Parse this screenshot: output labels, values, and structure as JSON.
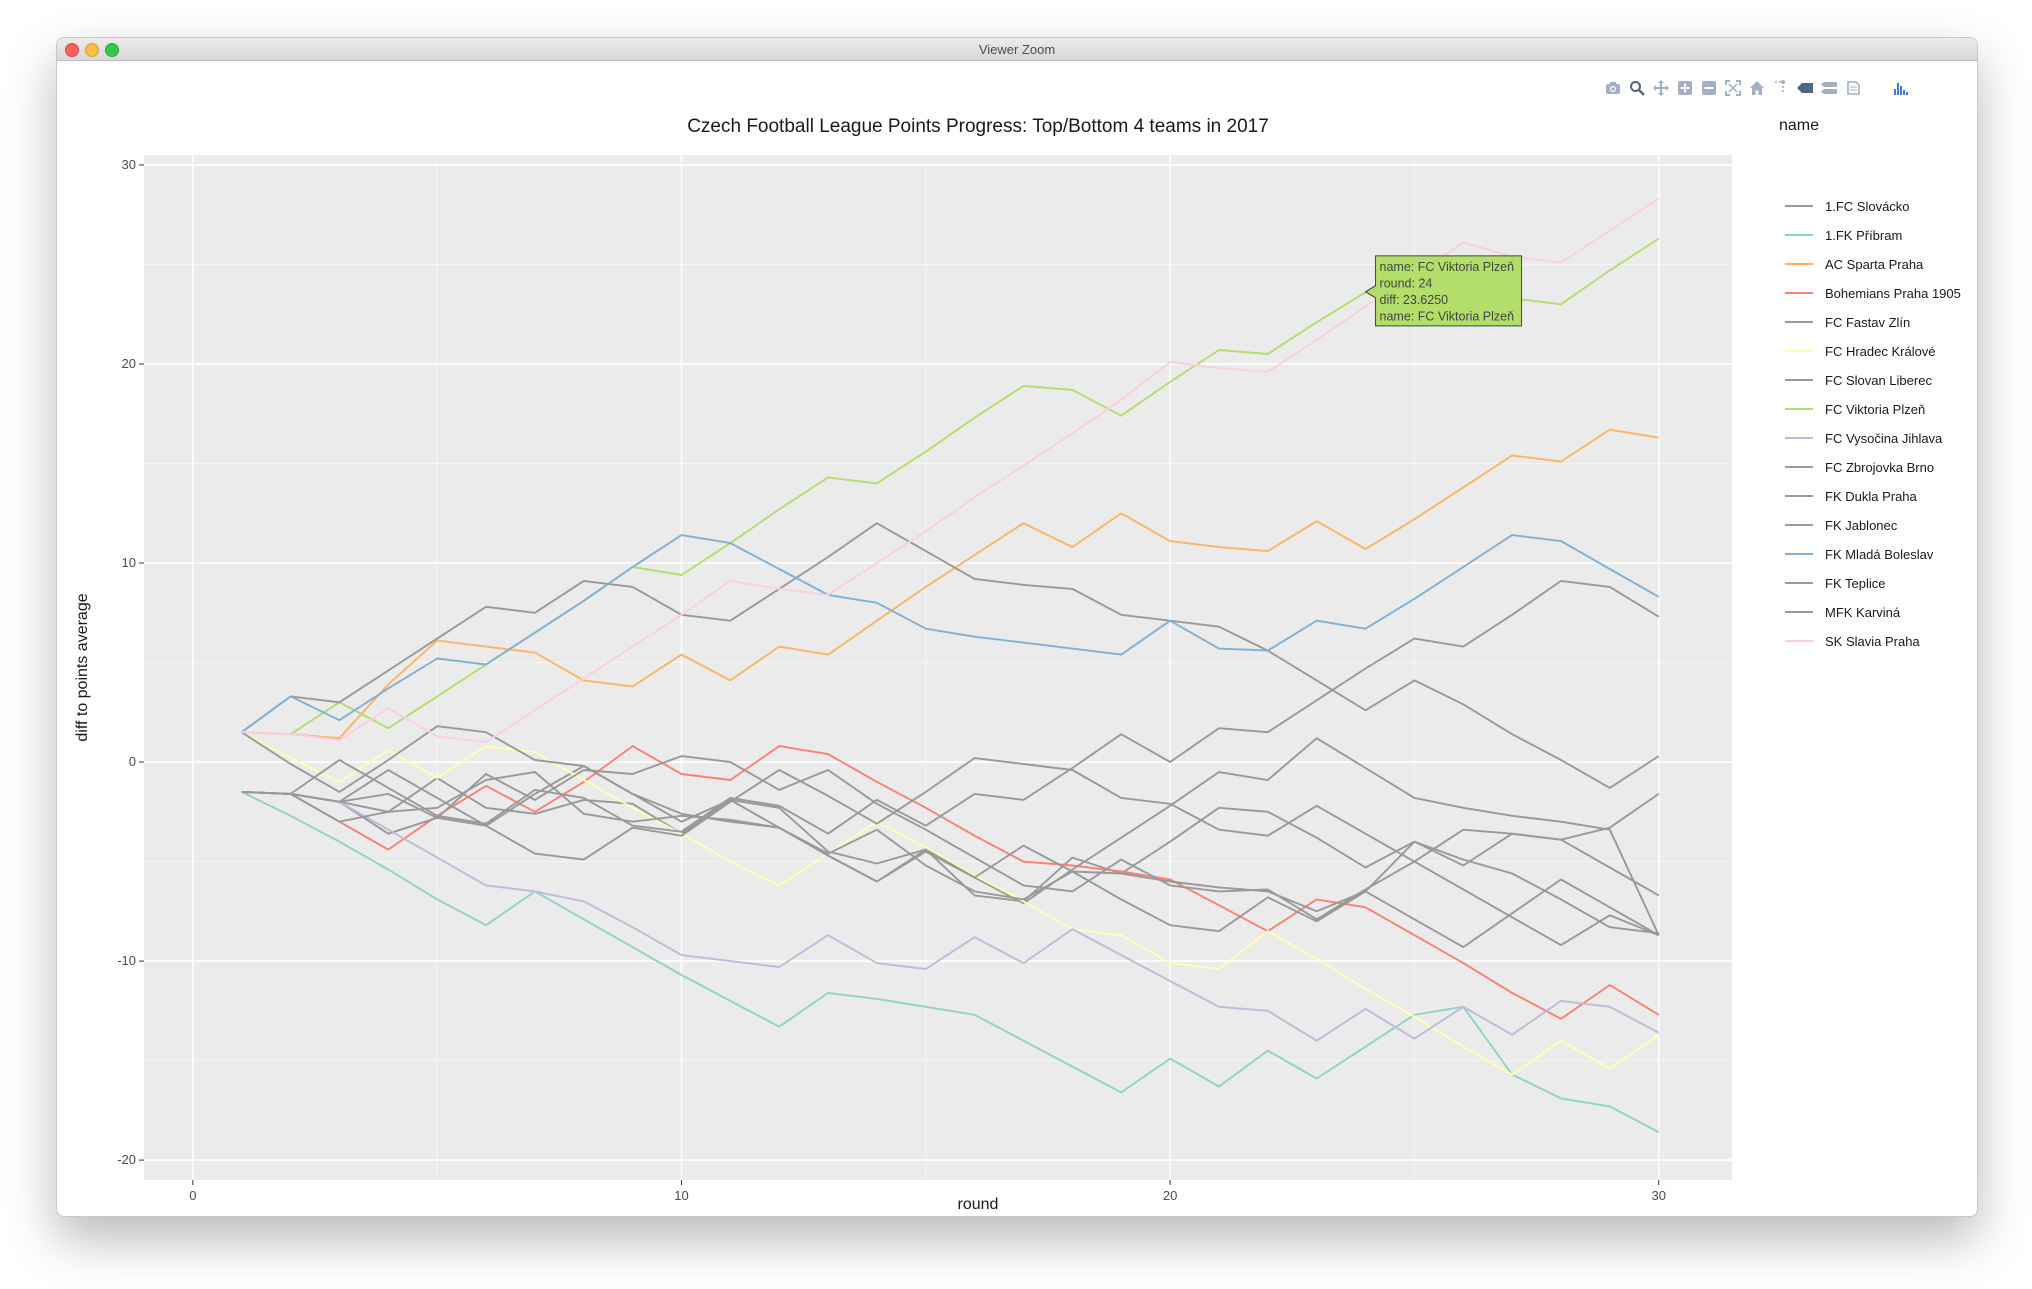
{
  "window": {
    "title": "Viewer Zoom"
  },
  "modebar": {
    "buttons": [
      "camera-icon",
      "zoom-icon",
      "pan-icon",
      "zoom-in-icon",
      "zoom-out-icon",
      "autoscale-icon",
      "home-icon",
      "spikelines-icon",
      "hover-closest-icon",
      "hover-compare-icon",
      "plotly-logo-icon",
      "chart-logo-icon"
    ]
  },
  "chart_data": {
    "type": "line",
    "title": "Czech Football League Points Progress: Top/Bottom 4 teams in 2017",
    "xlabel": "round",
    "ylabel": "diff to points average",
    "xlim": [
      -1,
      31.5
    ],
    "ylim": [
      -21,
      30.5
    ],
    "xticks": [
      0,
      10,
      20,
      30
    ],
    "yticks": [
      -20,
      -10,
      0,
      10,
      20,
      30
    ],
    "grid": true,
    "legend": {
      "title": "name",
      "position": "right"
    },
    "x": [
      1,
      2,
      3,
      4,
      5,
      6,
      7,
      8,
      9,
      10,
      11,
      12,
      13,
      14,
      15,
      16,
      17,
      18,
      19,
      20,
      21,
      22,
      23,
      24,
      25,
      26,
      27,
      28,
      29,
      30
    ],
    "series": [
      {
        "name": "1.FC Slovácko",
        "color": "#999999",
        "values": [
          -1.5,
          -1.6,
          -2.0,
          -2.5,
          -0.8,
          -2.3,
          -2.6,
          -1.9,
          -2.1,
          -3.6,
          -1.9,
          -2.3,
          -4.5,
          -5.1,
          -4.4,
          -6.7,
          -7.0,
          -4.8,
          -5.6,
          -4.0,
          -2.3,
          -2.5,
          -3.8,
          -5.3,
          -4.0,
          -5.2,
          -3.6,
          -3.9,
          -3.3,
          -1.6
        ]
      },
      {
        "name": "1.FK Příbram",
        "color": "#8dd3c7",
        "values": [
          -1.5,
          -2.7,
          -4.0,
          -5.4,
          -6.9,
          -8.2,
          -6.5,
          -7.9,
          -9.3,
          -10.7,
          -12.0,
          -13.3,
          -11.6,
          -11.9,
          -12.3,
          -12.7,
          -14.0,
          -15.3,
          -16.6,
          -14.9,
          -16.3,
          -14.5,
          -15.9,
          -14.3,
          -12.7,
          -12.3,
          -15.7,
          -16.9,
          -17.3,
          -18.6
        ]
      },
      {
        "name": "AC Sparta Praha",
        "color": "#fdb462",
        "values": [
          1.5,
          1.4,
          1.2,
          3.9,
          6.1,
          5.8,
          5.5,
          4.1,
          3.8,
          5.4,
          4.1,
          5.8,
          5.4,
          7.1,
          8.8,
          10.4,
          12.0,
          10.8,
          12.5,
          11.1,
          10.8,
          10.6,
          12.1,
          10.7,
          12.2,
          13.8,
          15.4,
          15.1,
          16.7,
          16.3
        ]
      },
      {
        "name": "Bohemians Praha 1905",
        "color": "#fb8072",
        "values": [
          -1.5,
          -1.6,
          -3.0,
          -4.4,
          -2.7,
          -1.2,
          -2.5,
          -1.0,
          0.8,
          -0.6,
          -0.9,
          0.8,
          0.4,
          -1.0,
          -2.3,
          -3.7,
          -5.0,
          -5.2,
          -5.5,
          -5.9,
          -7.2,
          -8.5,
          -6.9,
          -7.3,
          -8.7,
          -10.1,
          -11.6,
          -12.9,
          -11.2,
          -12.7
        ]
      },
      {
        "name": "FC Fastav Zlín",
        "color": "#999999",
        "values": [
          -1.5,
          -1.6,
          -2.0,
          -3.6,
          -2.8,
          -3.2,
          -1.6,
          -0.2,
          -1.6,
          -3.0,
          -1.9,
          -3.3,
          -4.7,
          -6.0,
          -4.5,
          -5.8,
          -7.1,
          -5.4,
          -3.8,
          -2.2,
          -0.5,
          -0.9,
          1.2,
          -0.3,
          -1.8,
          -2.3,
          -2.7,
          -3.0,
          -3.4,
          -8.7
        ]
      },
      {
        "name": "FC Hradec Králové",
        "color": "#ffffb3",
        "values": [
          1.5,
          0.2,
          -1.0,
          0.6,
          -0.8,
          0.8,
          0.5,
          -0.9,
          -2.3,
          -3.6,
          -5.0,
          -6.2,
          -4.6,
          -3.0,
          -4.3,
          -5.7,
          -7.0,
          -8.4,
          -8.7,
          -10.1,
          -10.4,
          -8.5,
          -9.9,
          -11.4,
          -12.8,
          -14.3,
          -15.7,
          -14.0,
          -15.4,
          -13.7
        ]
      },
      {
        "name": "FC Slovan Liberec",
        "color": "#999999",
        "values": [
          -1.5,
          -1.6,
          0.1,
          -1.3,
          -2.7,
          -3.1,
          -1.4,
          -1.8,
          -3.2,
          -3.5,
          -1.8,
          -2.2,
          -3.6,
          -1.9,
          -3.2,
          -1.6,
          -1.9,
          -0.3,
          1.4,
          0.0,
          1.7,
          1.5,
          3.1,
          4.7,
          6.2,
          5.8,
          7.4,
          9.1,
          8.8,
          7.3
        ]
      },
      {
        "name": "FC Viktoria Plzeň",
        "color": "#b3de69",
        "values": [
          1.5,
          1.4,
          3.0,
          1.7,
          3.3,
          4.9,
          6.5,
          8.1,
          9.8,
          9.4,
          11.0,
          12.7,
          14.3,
          14.0,
          15.6,
          17.3,
          18.9,
          18.7,
          17.4,
          19.1,
          20.7,
          20.5,
          22.1,
          23.6,
          25.2,
          24.9,
          23.3,
          23.0,
          24.7,
          26.3
        ]
      },
      {
        "name": "FC Vysočina Jihlava",
        "color": "#bebada",
        "values": [
          -1.5,
          -1.6,
          -2.0,
          -3.4,
          -4.8,
          -6.2,
          -6.5,
          -7.0,
          -8.3,
          -9.7,
          -10.0,
          -10.3,
          -8.7,
          -10.1,
          -10.4,
          -8.8,
          -10.1,
          -8.4,
          -9.7,
          -11.0,
          -12.3,
          -12.5,
          -14.0,
          -12.4,
          -13.9,
          -12.3,
          -13.7,
          -12.0,
          -12.3,
          -13.6
        ]
      },
      {
        "name": "FC Zbrojovka Brno",
        "color": "#999999",
        "values": [
          -1.5,
          -1.6,
          -2.0,
          -0.4,
          -1.8,
          -3.2,
          -4.6,
          -4.9,
          -3.3,
          -3.7,
          -2.0,
          -0.4,
          -1.7,
          -3.1,
          -1.5,
          0.2,
          -0.1,
          -0.4,
          -1.8,
          -2.1,
          -3.4,
          -3.7,
          -2.2,
          -3.6,
          -5.0,
          -6.4,
          -7.8,
          -9.2,
          -7.7,
          -8.7
        ]
      },
      {
        "name": "FK Dukla Praha",
        "color": "#999999",
        "values": [
          1.5,
          -0.1,
          -1.5,
          0.1,
          1.8,
          1.5,
          0.1,
          -0.2,
          -1.6,
          -2.6,
          -3.0,
          -3.3,
          -4.7,
          -6.0,
          -4.4,
          -5.8,
          -4.2,
          -5.5,
          -6.9,
          -8.2,
          -8.5,
          -6.8,
          -8.0,
          -6.5,
          -7.9,
          -9.3,
          -7.6,
          -5.9,
          -7.3,
          -8.7
        ]
      },
      {
        "name": "FK Jablonec",
        "color": "#999999",
        "values": [
          1.5,
          3.3,
          3.0,
          4.6,
          6.2,
          7.8,
          7.5,
          9.1,
          8.8,
          7.4,
          7.1,
          8.7,
          10.3,
          12.0,
          10.6,
          9.2,
          8.9,
          8.7,
          7.4,
          7.1,
          6.8,
          5.6,
          4.1,
          2.6,
          4.1,
          2.9,
          1.4,
          0.1,
          -1.3,
          0.3
        ]
      },
      {
        "name": "FK Mladá Boleslav",
        "color": "#80b1d3",
        "values": [
          1.5,
          3.3,
          2.1,
          3.7,
          5.2,
          4.9,
          6.5,
          8.1,
          9.8,
          11.4,
          11.0,
          9.7,
          8.4,
          8.0,
          6.7,
          6.3,
          6.0,
          5.7,
          5.4,
          7.1,
          5.7,
          5.6,
          7.1,
          6.7,
          8.2,
          9.8,
          11.4,
          11.1,
          9.7,
          8.3
        ]
      },
      {
        "name": "FK Teplice",
        "color": "#999999",
        "values": [
          -1.5,
          -1.6,
          -2.0,
          -1.6,
          -2.8,
          -0.6,
          -1.9,
          -0.4,
          -0.6,
          0.3,
          0.0,
          -1.4,
          -0.4,
          -2.1,
          -3.4,
          -4.8,
          -6.2,
          -6.5,
          -4.9,
          -6.2,
          -6.5,
          -6.4,
          -7.9,
          -6.4,
          -5.0,
          -3.4,
          -3.6,
          -3.9,
          -5.3,
          -6.7
        ]
      },
      {
        "name": "MFK Karviná",
        "color": "#999999",
        "values": [
          -1.5,
          -1.6,
          -3.0,
          -2.5,
          -2.3,
          -0.9,
          -0.5,
          -2.6,
          -3.0,
          -2.7,
          -2.9,
          -3.3,
          -4.6,
          -3.4,
          -5.2,
          -6.5,
          -6.9,
          -5.5,
          -5.6,
          -6.0,
          -6.3,
          -6.5,
          -7.5,
          -6.5,
          -4.0,
          -4.9,
          -5.6,
          -6.9,
          -8.3,
          -8.6
        ]
      },
      {
        "name": "SK Slavia Praha",
        "color": "#fccde5",
        "values": [
          1.5,
          1.4,
          1.1,
          2.7,
          1.3,
          1.0,
          2.6,
          4.2,
          5.8,
          7.4,
          9.1,
          8.7,
          8.4,
          10.0,
          11.6,
          13.3,
          14.9,
          16.5,
          18.2,
          20.1,
          19.8,
          19.6,
          21.2,
          22.9,
          24.5,
          26.1,
          25.4,
          25.1,
          26.7,
          28.3
        ]
      }
    ],
    "tooltip": {
      "lines": [
        "name: FC Viktoria Plzeň",
        "round: 24",
        "diff: 23.6250",
        "name: FC Viktoria Plzeň"
      ],
      "series": "FC Viktoria Plzeň",
      "x": 24,
      "y": 23.625,
      "color": "#b3de69"
    }
  }
}
